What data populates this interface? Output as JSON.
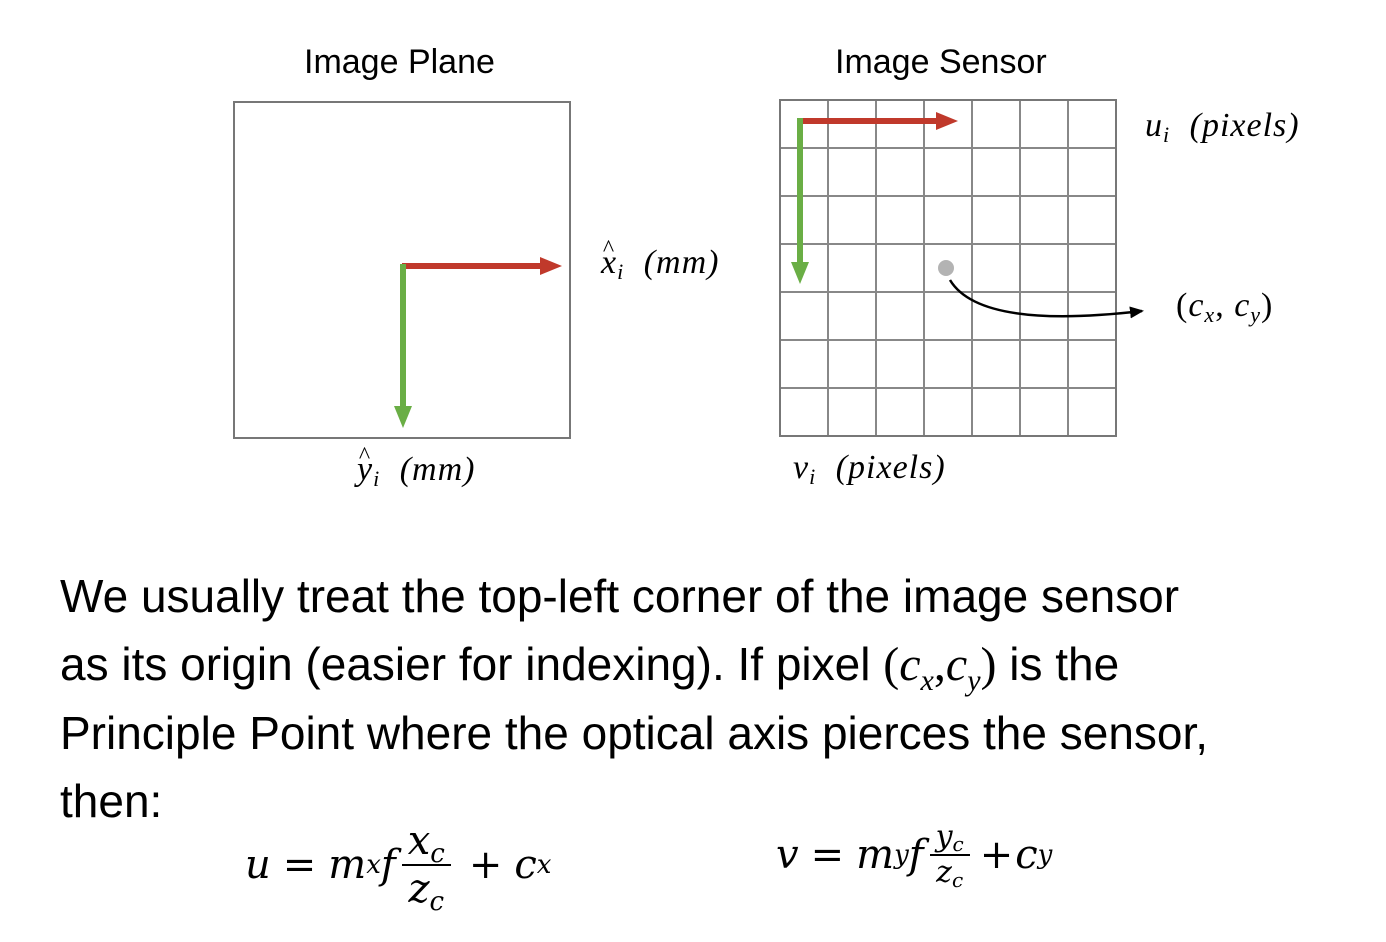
{
  "left_panel": {
    "title": "Image Plane",
    "x_axis_label": {
      "var": "x",
      "sub": "i",
      "unit": "(mm)"
    },
    "y_axis_label": {
      "var": "y",
      "sub": "i",
      "unit": "(mm)"
    }
  },
  "right_panel": {
    "title": "Image Sensor",
    "u_axis_label": {
      "var": "u",
      "sub": "i",
      "unit": "(pixels)"
    },
    "v_axis_label": {
      "var": "v",
      "sub": "i",
      "unit": "(pixels)"
    },
    "principal_point_label": {
      "open": "(",
      "c1": "c",
      "s1": "x",
      "comma": ", ",
      "c2": "c",
      "s2": "y",
      "close": ")"
    },
    "grid": {
      "columns": 7,
      "rows": 7
    }
  },
  "colors": {
    "x_axis": "#c0392b",
    "y_axis": "#6aae45",
    "grid_line": "#888888",
    "frame": "#777777",
    "point": "#b3b3b3",
    "curve": "#000000"
  },
  "body": {
    "line1": "We usually treat the top-left corner of the image sensor",
    "line2_before": "as its origin (easier for indexing). If pixel ",
    "line2_after": " is the",
    "line3": "Principle Point where the optical axis pierces the sensor,",
    "line4": "then:"
  },
  "equations": {
    "u": {
      "lhs": "u",
      "eq": "=",
      "m": "m",
      "m_sub": "x",
      "f": "f",
      "num": "x",
      "num_sub": "c",
      "den": "z",
      "den_sub": "c",
      "plus": "+",
      "c": "c",
      "c_sub": "x"
    },
    "v": {
      "lhs": "v",
      "eq": "=",
      "m": "m",
      "m_sub": "y",
      "f": "f",
      "num": "y",
      "num_sub": "c",
      "den": "z",
      "den_sub": "c",
      "plus": "+",
      "c": "c",
      "c_sub": "y"
    }
  }
}
